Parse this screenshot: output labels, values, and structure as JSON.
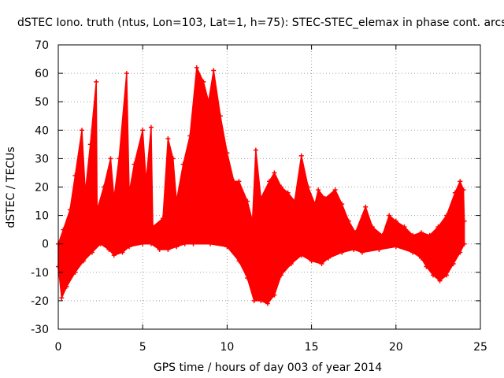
{
  "chart_data": {
    "type": "scatter",
    "title": "dSTEC Iono. truth (ntus, Lon=103, Lat=1, h=75): STEC-STEC_elemax in phase cont. arcs",
    "xlabel": "GPS time / hours of day 003 of year 2014",
    "ylabel": "dSTEC  / TECUs",
    "xlim": [
      0,
      25
    ],
    "ylim": [
      -30,
      70
    ],
    "xticks": [
      0,
      5,
      10,
      15,
      20,
      25
    ],
    "yticks": [
      -30,
      -20,
      -10,
      0,
      10,
      20,
      30,
      40,
      50,
      60,
      70
    ],
    "grid": true,
    "marker": "+",
    "series": [
      {
        "name": "STEC-STEC_elemax",
        "color": "#ff0000",
        "upper": [
          [
            0.0,
            0
          ],
          [
            0.3,
            5
          ],
          [
            0.7,
            12
          ],
          [
            1.0,
            24
          ],
          [
            1.4,
            40
          ],
          [
            1.6,
            18
          ],
          [
            1.9,
            35
          ],
          [
            2.25,
            57
          ],
          [
            2.3,
            12
          ],
          [
            2.7,
            20
          ],
          [
            3.1,
            30
          ],
          [
            3.3,
            16
          ],
          [
            3.6,
            30
          ],
          [
            4.05,
            60
          ],
          [
            4.2,
            18
          ],
          [
            4.5,
            28
          ],
          [
            5.0,
            40
          ],
          [
            5.2,
            22
          ],
          [
            5.5,
            41
          ],
          [
            5.6,
            6
          ],
          [
            6.2,
            9
          ],
          [
            6.5,
            37
          ],
          [
            6.8,
            30
          ],
          [
            7.0,
            15
          ],
          [
            7.4,
            28
          ],
          [
            7.8,
            38
          ],
          [
            8.2,
            62
          ],
          [
            8.6,
            57
          ],
          [
            8.9,
            50
          ],
          [
            9.2,
            61
          ],
          [
            9.6,
            45
          ],
          [
            10.0,
            32
          ],
          [
            10.4,
            22
          ],
          [
            10.7,
            22
          ],
          [
            11.2,
            15
          ],
          [
            11.5,
            8
          ],
          [
            11.7,
            33
          ],
          [
            12.0,
            16
          ],
          [
            12.5,
            22
          ],
          [
            12.8,
            25
          ],
          [
            13.2,
            20
          ],
          [
            13.6,
            18
          ],
          [
            14.0,
            15
          ],
          [
            14.4,
            31
          ],
          [
            14.8,
            20
          ],
          [
            15.2,
            14
          ],
          [
            15.4,
            19
          ],
          [
            15.8,
            16
          ],
          [
            16.4,
            19
          ],
          [
            16.8,
            14
          ],
          [
            17.2,
            8
          ],
          [
            17.6,
            4
          ],
          [
            18.2,
            13
          ],
          [
            18.6,
            6
          ],
          [
            19.2,
            3
          ],
          [
            19.6,
            10
          ],
          [
            20.0,
            8
          ],
          [
            20.5,
            6
          ],
          [
            21.0,
            3
          ],
          [
            21.5,
            4
          ],
          [
            22.0,
            3
          ],
          [
            22.5,
            6
          ],
          [
            23.0,
            10
          ],
          [
            23.5,
            18
          ],
          [
            23.8,
            22
          ],
          [
            24.0,
            19
          ],
          [
            24.05,
            8
          ]
        ],
        "lower": [
          [
            0.0,
            -8
          ],
          [
            0.2,
            -19
          ],
          [
            0.5,
            -15
          ],
          [
            1.0,
            -10
          ],
          [
            1.5,
            -6
          ],
          [
            2.0,
            -3
          ],
          [
            2.5,
            0
          ],
          [
            3.0,
            -2
          ],
          [
            3.3,
            -4
          ],
          [
            3.8,
            -3
          ],
          [
            4.2,
            -1
          ],
          [
            5.0,
            0
          ],
          [
            5.5,
            0
          ],
          [
            6.0,
            -2
          ],
          [
            6.5,
            -2
          ],
          [
            7.0,
            -1
          ],
          [
            7.5,
            0
          ],
          [
            8.0,
            0
          ],
          [
            9.0,
            0
          ],
          [
            10.0,
            -1
          ],
          [
            10.7,
            -6
          ],
          [
            11.2,
            -12
          ],
          [
            11.6,
            -20
          ],
          [
            12.0,
            -20
          ],
          [
            12.4,
            -21
          ],
          [
            12.8,
            -18
          ],
          [
            13.2,
            -11
          ],
          [
            13.8,
            -7
          ],
          [
            14.4,
            -4
          ],
          [
            15.0,
            -6
          ],
          [
            15.6,
            -7
          ],
          [
            16.0,
            -5
          ],
          [
            16.8,
            -3
          ],
          [
            17.5,
            -2
          ],
          [
            18.0,
            -3
          ],
          [
            19.0,
            -2
          ],
          [
            20.0,
            -1
          ],
          [
            21.0,
            -3
          ],
          [
            21.5,
            -5
          ],
          [
            21.8,
            -8
          ],
          [
            22.2,
            -11
          ],
          [
            22.6,
            -13
          ],
          [
            23.0,
            -11
          ],
          [
            23.4,
            -7
          ],
          [
            23.8,
            -3
          ],
          [
            24.05,
            0
          ]
        ]
      }
    ]
  }
}
